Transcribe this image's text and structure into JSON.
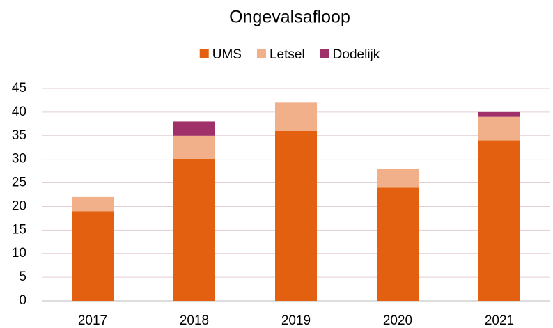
{
  "chart_data": {
    "type": "stacked_bar",
    "title": "Ongevalsafloop",
    "categories": [
      "2017",
      "2018",
      "2019",
      "2020",
      "2021"
    ],
    "series": [
      {
        "name": "UMS",
        "color": "#e36010",
        "values": [
          19,
          30,
          36,
          24,
          34
        ]
      },
      {
        "name": "Letsel",
        "color": "#f2b08a",
        "values": [
          3,
          5,
          6,
          4,
          5
        ]
      },
      {
        "name": "Dodelijk",
        "color": "#a0306a",
        "values": [
          0,
          3,
          0,
          0,
          1
        ]
      }
    ],
    "ylim": [
      0,
      45
    ],
    "yticks": [
      0,
      5,
      10,
      15,
      20,
      25,
      30,
      35,
      40,
      45
    ],
    "grid": true,
    "legend": "top"
  }
}
